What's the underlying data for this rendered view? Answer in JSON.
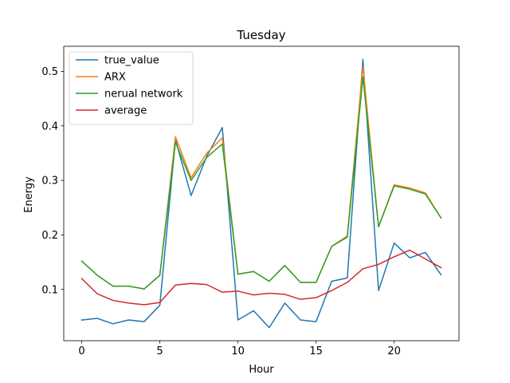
{
  "chart_data": {
    "type": "line",
    "title": "Tuesday",
    "xlabel": "Hour",
    "ylabel": "Energy",
    "xlim": [
      -1.15,
      24.15
    ],
    "ylim": [
      0.006,
      0.546
    ],
    "xticks": [
      0,
      5,
      10,
      15,
      20
    ],
    "yticks": [
      0.1,
      0.2,
      0.3,
      0.4,
      0.5
    ],
    "grid": false,
    "legend_position": "upper-left",
    "x": [
      0,
      1,
      2,
      3,
      4,
      5,
      6,
      7,
      8,
      9,
      10,
      11,
      12,
      13,
      14,
      15,
      16,
      17,
      18,
      19,
      20,
      21,
      22,
      23
    ],
    "series": [
      {
        "name": "true_value",
        "color": "#1f77b4",
        "values": [
          0.044,
          0.047,
          0.037,
          0.044,
          0.041,
          0.071,
          0.375,
          0.272,
          0.344,
          0.397,
          0.044,
          0.061,
          0.03,
          0.075,
          0.044,
          0.041,
          0.115,
          0.121,
          0.522,
          0.098,
          0.185,
          0.158,
          0.168,
          0.127
        ]
      },
      {
        "name": "ARX",
        "color": "#ff7f0e",
        "values": [
          0.152,
          0.126,
          0.106,
          0.106,
          0.101,
          0.126,
          0.38,
          0.305,
          0.35,
          0.378,
          0.128,
          0.133,
          0.115,
          0.144,
          0.113,
          0.113,
          0.179,
          0.198,
          0.509,
          0.215,
          0.292,
          0.286,
          0.277,
          0.231
        ]
      },
      {
        "name": "nerual network",
        "color": "#2ca02c",
        "values": [
          0.152,
          0.126,
          0.106,
          0.106,
          0.101,
          0.126,
          0.37,
          0.3,
          0.342,
          0.367,
          0.128,
          0.133,
          0.115,
          0.144,
          0.113,
          0.113,
          0.179,
          0.196,
          0.49,
          0.215,
          0.29,
          0.284,
          0.275,
          0.231
        ]
      },
      {
        "name": "average",
        "color": "#d62728",
        "values": [
          0.12,
          0.092,
          0.08,
          0.075,
          0.072,
          0.076,
          0.108,
          0.111,
          0.109,
          0.095,
          0.097,
          0.09,
          0.093,
          0.091,
          0.082,
          0.085,
          0.098,
          0.113,
          0.138,
          0.146,
          0.16,
          0.172,
          0.156,
          0.14
        ]
      }
    ]
  }
}
